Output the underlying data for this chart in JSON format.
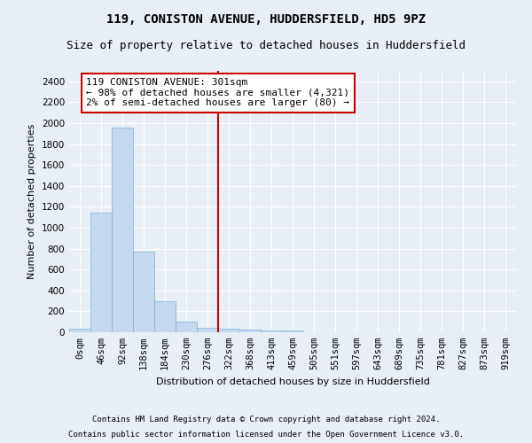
{
  "title": "119, CONISTON AVENUE, HUDDERSFIELD, HD5 9PZ",
  "subtitle": "Size of property relative to detached houses in Huddersfield",
  "xlabel": "Distribution of detached houses by size in Huddersfield",
  "ylabel": "Number of detached properties",
  "footer1": "Contains HM Land Registry data © Crown copyright and database right 2024.",
  "footer2": "Contains public sector information licensed under the Open Government Licence v3.0.",
  "bar_labels": [
    "0sqm",
    "46sqm",
    "92sqm",
    "138sqm",
    "184sqm",
    "230sqm",
    "276sqm",
    "322sqm",
    "368sqm",
    "413sqm",
    "459sqm",
    "505sqm",
    "551sqm",
    "597sqm",
    "643sqm",
    "689sqm",
    "735sqm",
    "781sqm",
    "827sqm",
    "873sqm",
    "919sqm"
  ],
  "bar_values": [
    30,
    1140,
    1960,
    770,
    300,
    100,
    40,
    35,
    25,
    15,
    15,
    0,
    0,
    0,
    0,
    0,
    0,
    0,
    0,
    0,
    0
  ],
  "bar_color": "#c5d8ee",
  "bar_edgecolor": "#7aafd4",
  "ylim": [
    0,
    2500
  ],
  "yticks": [
    0,
    200,
    400,
    600,
    800,
    1000,
    1200,
    1400,
    1600,
    1800,
    2000,
    2200,
    2400
  ],
  "vline_x": 6.52,
  "vline_color": "#cc0000",
  "annotation_text": "119 CONISTON AVENUE: 301sqm\n← 98% of detached houses are smaller (4,321)\n2% of semi-detached houses are larger (80) →",
  "annotation_box_color": "#cc0000",
  "bg_color": "#e8eef5",
  "plot_bg_color": "#e8eef5",
  "grid_color": "#ffffff",
  "title_fontsize": 10,
  "subtitle_fontsize": 9,
  "axis_label_fontsize": 8,
  "tick_fontsize": 7.5,
  "annotation_fontsize": 8,
  "footer_fontsize": 6.5
}
